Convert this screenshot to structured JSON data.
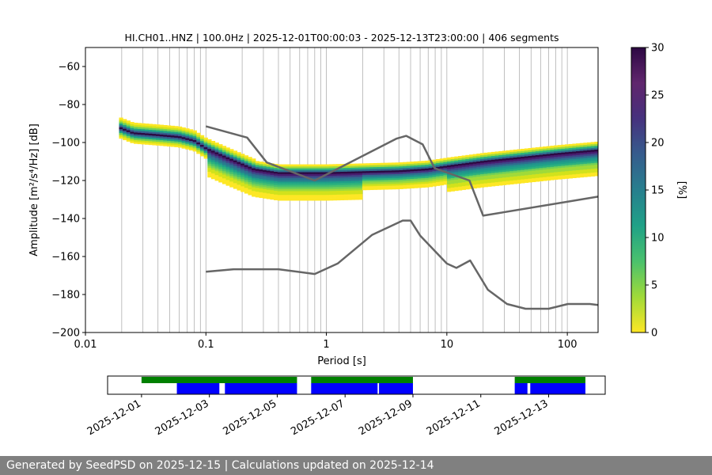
{
  "chart_data": {
    "type": "heatmap",
    "title": "HI.CH01..HNZ | 100.0Hz | 2025-12-01T00:00:03 - 2025-12-13T23:00:00 | 406 segments",
    "xlabel": "Period [s]",
    "ylabel": "Amplitude [m²/s⁴/Hz] [dB]",
    "xscale": "log",
    "xlim": [
      0.01,
      180
    ],
    "ylim": [
      -200,
      -50
    ],
    "xticks": [
      0.01,
      0.1,
      1,
      10,
      100
    ],
    "xtick_labels": [
      "0.01",
      "0.1",
      "1",
      "10",
      "100"
    ],
    "yticks": [
      -200,
      -180,
      -160,
      -140,
      -120,
      -100,
      -80,
      -60
    ],
    "ytick_labels": [
      "−200",
      "−180",
      "−160",
      "−140",
      "−120",
      "−100",
      "−80",
      "−60"
    ],
    "grid": "vertical-log-minor",
    "colorbar": {
      "label": "[%]",
      "range": [
        0,
        30
      ],
      "ticks": [
        0,
        5,
        10,
        15,
        20,
        25,
        30
      ],
      "tick_labels": [
        "0",
        "5",
        "10",
        "15",
        "20",
        "25",
        "30"
      ],
      "colormap": "viridis_r"
    },
    "mode_curve": [
      [
        0.019,
        -92
      ],
      [
        0.025,
        -95
      ],
      [
        0.04,
        -96
      ],
      [
        0.06,
        -97
      ],
      [
        0.08,
        -99
      ],
      [
        0.1,
        -103
      ],
      [
        0.15,
        -108
      ],
      [
        0.25,
        -114
      ],
      [
        0.4,
        -116
      ],
      [
        0.7,
        -116
      ],
      [
        1,
        -116
      ],
      [
        2,
        -115.5
      ],
      [
        4,
        -115
      ],
      [
        7,
        -114
      ],
      [
        10,
        -112.5
      ],
      [
        20,
        -110
      ],
      [
        40,
        -108
      ],
      [
        80,
        -106
      ],
      [
        180,
        -104
      ]
    ],
    "high_noise_model": [
      [
        0.1,
        -91.5
      ],
      [
        0.22,
        -97.4
      ],
      [
        0.32,
        -110.5
      ],
      [
        0.8,
        -120
      ],
      [
        3.8,
        -98
      ],
      [
        4.6,
        -96.5
      ],
      [
        6.3,
        -101
      ],
      [
        7.9,
        -113.5
      ],
      [
        15.4,
        -120
      ],
      [
        20,
        -138.5
      ],
      [
        180,
        -128.5
      ]
    ],
    "low_noise_model": [
      [
        0.1,
        -168
      ],
      [
        0.17,
        -166.7
      ],
      [
        0.4,
        -166.7
      ],
      [
        0.8,
        -169.2
      ],
      [
        1.24,
        -163.7
      ],
      [
        2.4,
        -148.6
      ],
      [
        4.3,
        -141.1
      ],
      [
        5,
        -141.1
      ],
      [
        6,
        -149
      ],
      [
        10,
        -163.7
      ],
      [
        12,
        -166
      ],
      [
        15.6,
        -162.1
      ],
      [
        21.9,
        -177.5
      ],
      [
        31.6,
        -185
      ],
      [
        45,
        -187.5
      ],
      [
        70,
        -187.5
      ],
      [
        101,
        -185
      ],
      [
        154,
        -185
      ],
      [
        180,
        -185.5
      ]
    ],
    "availability": {
      "date_range": [
        "2025-11-30T00:00",
        "2025-12-14T16:00"
      ],
      "x_tick_labels": [
        "2025-12-01",
        "2025-12-03",
        "2025-12-05",
        "2025-12-07",
        "2025-12-09",
        "2025-12-11",
        "2025-12-13"
      ],
      "x_tick_dates": [
        "2025-12-01",
        "2025-12-03",
        "2025-12-05",
        "2025-12-07",
        "2025-12-09",
        "2025-12-11",
        "2025-12-13"
      ],
      "psd_coverage": [
        [
          "2025-12-01T00:00",
          "2025-12-03T07:00"
        ],
        [
          "2025-12-03T04:00",
          "2025-12-05T14:00"
        ],
        [
          "2025-12-06T00:00",
          "2025-12-09T00:00"
        ],
        [
          "2025-12-12T00:00",
          "2025-12-14T02:00"
        ]
      ],
      "data_coverage": [
        [
          "2025-12-02T01:00",
          "2025-12-03T07:00"
        ],
        [
          "2025-12-03T04:00",
          "2025-12-03T07:00"
        ],
        [
          "2025-12-03T11:00",
          "2025-12-05T14:00"
        ],
        [
          "2025-12-06T00:00",
          "2025-12-07T23:00"
        ],
        [
          "2025-12-08T00:00",
          "2025-12-09T00:00"
        ],
        [
          "2025-12-12T00:00",
          "2025-12-12T09:00"
        ],
        [
          "2025-12-12T11:00",
          "2025-12-14T02:00"
        ]
      ],
      "psd_color": "#008000",
      "data_color": "#0000ff"
    },
    "noise_model_color": "#666666"
  },
  "footer": {
    "text": "Generated by SeedPSD on 2025-12-15 | Calculations updated on 2025-12-14"
  }
}
